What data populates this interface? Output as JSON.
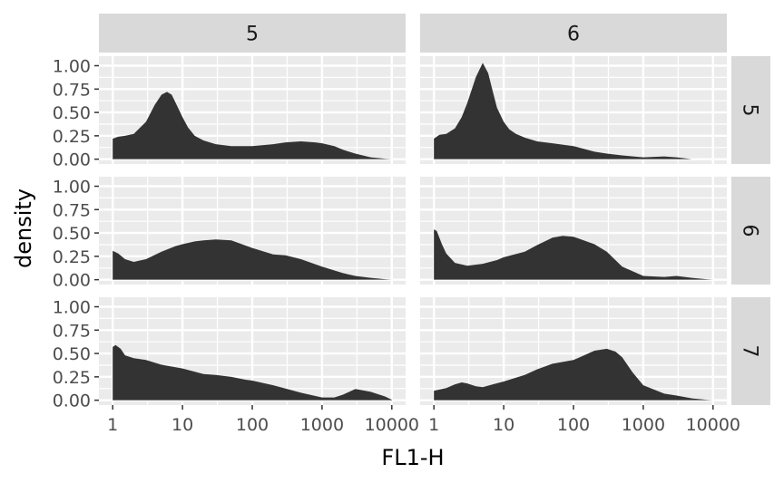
{
  "chart_data": {
    "type": "area",
    "title": "",
    "xlabel": "FL1-H",
    "ylabel": "density",
    "x_scale": "log10",
    "xlim": [
      1,
      10000
    ],
    "ylim": [
      0,
      1.05
    ],
    "x_ticks": [
      1,
      10,
      100,
      1000,
      10000
    ],
    "x_tick_labels": [
      "1",
      "10",
      "100",
      "1000",
      "10000"
    ],
    "y_ticks": [
      0,
      0.25,
      0.5,
      0.75,
      1.0
    ],
    "y_tick_labels": [
      "0.00",
      "0.25",
      "0.50",
      "0.75",
      "1.00"
    ],
    "grid": true,
    "column_strips": [
      "5",
      "6"
    ],
    "row_strips": [
      "5",
      "6",
      "7"
    ],
    "fill_color": "#333333",
    "panel_bg": "#ebebeb",
    "strip_bg": "#d9d9d9",
    "panels": [
      {
        "row": "5",
        "col": "5",
        "x": [
          1,
          1.2,
          1.5,
          2,
          3,
          4,
          5,
          6,
          7,
          8,
          10,
          12,
          15,
          20,
          30,
          50,
          100,
          200,
          300,
          500,
          800,
          1000,
          1500,
          2000,
          3000,
          5000,
          8000,
          10000
        ],
        "y": [
          0.22,
          0.24,
          0.25,
          0.27,
          0.4,
          0.58,
          0.69,
          0.72,
          0.69,
          0.6,
          0.45,
          0.34,
          0.25,
          0.2,
          0.16,
          0.14,
          0.14,
          0.16,
          0.18,
          0.19,
          0.18,
          0.17,
          0.14,
          0.1,
          0.06,
          0.02,
          0.005,
          0.0
        ]
      },
      {
        "row": "5",
        "col": "6",
        "x": [
          1,
          1.2,
          1.5,
          2,
          2.5,
          3,
          4,
          5,
          6,
          7,
          8,
          10,
          12,
          15,
          20,
          30,
          50,
          100,
          200,
          300,
          500,
          1000,
          2000,
          3000,
          5000
        ],
        "y": [
          0.22,
          0.26,
          0.27,
          0.33,
          0.45,
          0.6,
          0.88,
          1.03,
          0.92,
          0.72,
          0.55,
          0.4,
          0.32,
          0.27,
          0.23,
          0.19,
          0.17,
          0.14,
          0.08,
          0.06,
          0.04,
          0.02,
          0.03,
          0.02,
          0.0
        ]
      },
      {
        "row": "6",
        "col": "5",
        "x": [
          1,
          1.2,
          1.5,
          2,
          3,
          5,
          8,
          10,
          15,
          20,
          30,
          50,
          100,
          200,
          300,
          500,
          1000,
          2000,
          3000,
          5000,
          8000,
          10000
        ],
        "y": [
          0.31,
          0.28,
          0.22,
          0.19,
          0.22,
          0.3,
          0.36,
          0.38,
          0.41,
          0.42,
          0.43,
          0.42,
          0.34,
          0.27,
          0.26,
          0.22,
          0.14,
          0.07,
          0.04,
          0.02,
          0.005,
          0.0
        ]
      },
      {
        "row": "6",
        "col": "6",
        "x": [
          1,
          1.1,
          1.3,
          1.5,
          2,
          3,
          5,
          8,
          10,
          20,
          30,
          50,
          70,
          100,
          200,
          300,
          500,
          1000,
          2000,
          3000,
          5000,
          8000,
          10000
        ],
        "y": [
          0.54,
          0.52,
          0.38,
          0.28,
          0.18,
          0.15,
          0.17,
          0.21,
          0.24,
          0.3,
          0.37,
          0.45,
          0.47,
          0.46,
          0.38,
          0.3,
          0.14,
          0.04,
          0.03,
          0.04,
          0.02,
          0.005,
          0.0
        ]
      },
      {
        "row": "7",
        "col": "5",
        "x": [
          1,
          1.1,
          1.3,
          1.5,
          2,
          3,
          5,
          10,
          20,
          30,
          50,
          80,
          100,
          200,
          500,
          1000,
          1500,
          2000,
          3000,
          5000,
          8000,
          10000
        ],
        "y": [
          0.57,
          0.59,
          0.55,
          0.48,
          0.45,
          0.43,
          0.38,
          0.34,
          0.28,
          0.27,
          0.25,
          0.22,
          0.21,
          0.16,
          0.08,
          0.03,
          0.03,
          0.06,
          0.12,
          0.09,
          0.04,
          0.005
        ]
      },
      {
        "row": "7",
        "col": "6",
        "x": [
          1,
          1.5,
          2,
          2.5,
          3,
          4,
          5,
          7,
          10,
          20,
          30,
          50,
          100,
          200,
          300,
          400,
          500,
          700,
          1000,
          2000,
          3000,
          5000,
          8000,
          10000
        ],
        "y": [
          0.1,
          0.13,
          0.17,
          0.19,
          0.18,
          0.15,
          0.14,
          0.17,
          0.2,
          0.27,
          0.33,
          0.39,
          0.43,
          0.53,
          0.55,
          0.52,
          0.46,
          0.3,
          0.16,
          0.07,
          0.05,
          0.02,
          0.005,
          0.0
        ]
      }
    ]
  }
}
